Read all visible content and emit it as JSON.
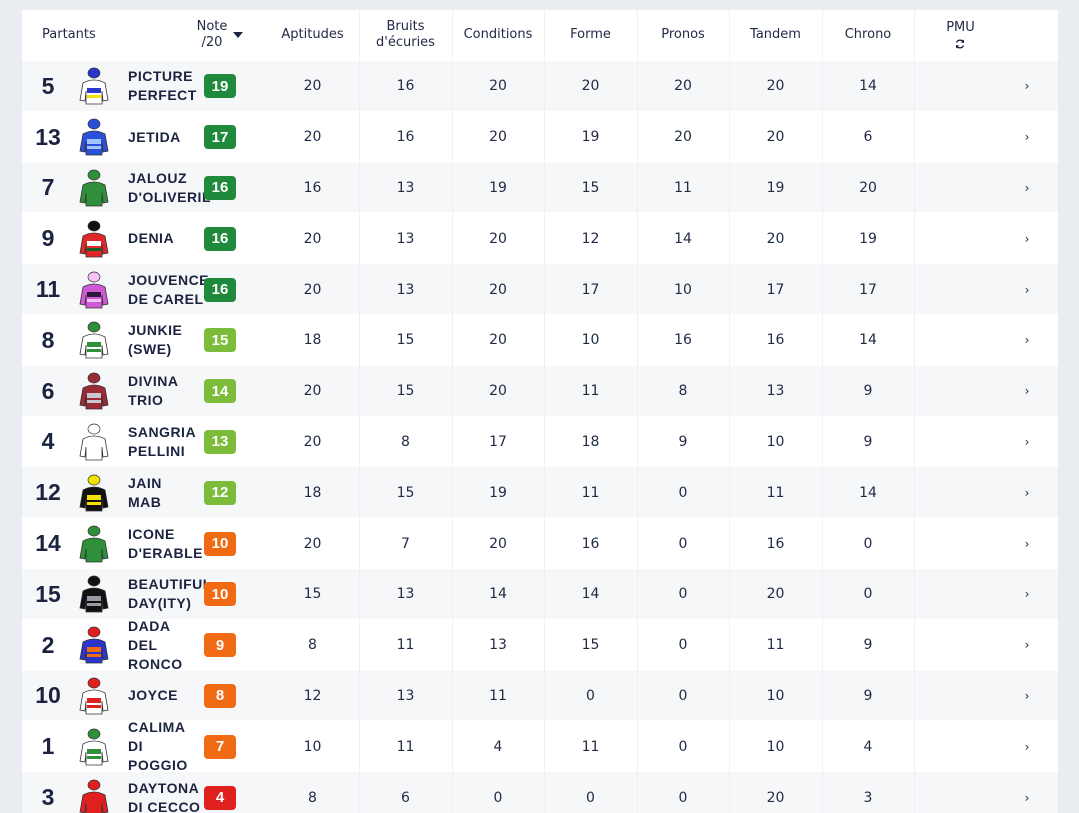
{
  "columns": {
    "partants": "Partants",
    "note": "Note",
    "note_sub": "/20",
    "aptitudes": "Aptitudes",
    "bruits": "Bruits",
    "bruits_sub": "d'écuries",
    "conditions": "Conditions",
    "forme": "Forme",
    "pronos": "Pronos",
    "tandem": "Tandem",
    "chrono": "Chrono",
    "pmu": "PMU"
  },
  "colors": {
    "note_band": "#e3e8ef",
    "badge_dark_green": "#1f8a3b",
    "badge_light_green": "#7cbc3a",
    "badge_orange": "#f06a14",
    "badge_red": "#e0201e"
  },
  "rows": [
    {
      "num": "5",
      "name": "PICTURE\nPERFECT",
      "note": "19",
      "badge": "#1f8a3b",
      "aptitudes": "20",
      "bruits": "16",
      "conditions": "20",
      "forme": "20",
      "pronos": "20",
      "tandem": "20",
      "chrono": "14",
      "pmu": "›",
      "silk": {
        "body": "#ffffff",
        "band": "#2a36c9",
        "accent": "#f2e300",
        "cap": "#2a36c9"
      }
    },
    {
      "num": "13",
      "name": "JETIDA",
      "note": "17",
      "badge": "#1f8a3b",
      "aptitudes": "20",
      "bruits": "16",
      "conditions": "20",
      "forme": "19",
      "pronos": "20",
      "tandem": "20",
      "chrono": "6",
      "pmu": "›",
      "silk": {
        "body": "#2a4fd9",
        "band": "#9ec4ff",
        "accent": "#9ec4ff",
        "cap": "#2a4fd9"
      }
    },
    {
      "num": "7",
      "name": "JALOUZ\nD'OLIVERIL",
      "note": "16",
      "badge": "#1f8a3b",
      "aptitudes": "16",
      "bruits": "13",
      "conditions": "19",
      "forme": "15",
      "pronos": "11",
      "tandem": "19",
      "chrono": "20",
      "pmu": "›",
      "silk": {
        "body": "#2f8f3a",
        "band": "#2f8f3a",
        "accent": "#2f8f3a",
        "cap": "#2f8f3a"
      }
    },
    {
      "num": "9",
      "name": "DENIA",
      "note": "16",
      "badge": "#1f8a3b",
      "aptitudes": "20",
      "bruits": "13",
      "conditions": "20",
      "forme": "12",
      "pronos": "14",
      "tandem": "20",
      "chrono": "19",
      "pmu": "›",
      "silk": {
        "body": "#e0282a",
        "band": "#ffffff",
        "accent": "#135e2b",
        "cap": "#111111"
      }
    },
    {
      "num": "11",
      "name": "JOUVENCE\nDE CAREL",
      "note": "16",
      "badge": "#1f8a3b",
      "aptitudes": "20",
      "bruits": "13",
      "conditions": "20",
      "forme": "17",
      "pronos": "10",
      "tandem": "17",
      "chrono": "17",
      "pmu": "›",
      "silk": {
        "body": "#d05ad6",
        "band": "#2a1a3a",
        "accent": "#f6c2f8",
        "cap": "#f6c2f8"
      }
    },
    {
      "num": "8",
      "name": "JUNKIE\n(SWE)",
      "note": "15",
      "badge": "#7cbc3a",
      "aptitudes": "18",
      "bruits": "15",
      "conditions": "20",
      "forme": "10",
      "pronos": "16",
      "tandem": "16",
      "chrono": "14",
      "pmu": "›",
      "silk": {
        "body": "#ffffff",
        "band": "#2f8f3a",
        "accent": "#2f8f3a",
        "cap": "#2f8f3a"
      }
    },
    {
      "num": "6",
      "name": "DIVINA\nTRIO",
      "note": "14",
      "badge": "#7cbc3a",
      "aptitudes": "20",
      "bruits": "15",
      "conditions": "20",
      "forme": "11",
      "pronos": "8",
      "tandem": "13",
      "chrono": "9",
      "pmu": "›",
      "silk": {
        "body": "#9a2a36",
        "band": "#c8c8d0",
        "accent": "#c8c8d0",
        "cap": "#9a2a36"
      }
    },
    {
      "num": "4",
      "name": "SANGRIA\nPELLINI",
      "note": "13",
      "badge": "#7cbc3a",
      "aptitudes": "20",
      "bruits": "8",
      "conditions": "17",
      "forme": "18",
      "pronos": "9",
      "tandem": "10",
      "chrono": "9",
      "pmu": "›",
      "silk": {
        "body": "#ffffff",
        "band": "#ffffff",
        "accent": "#ffffff",
        "cap": "#ffffff"
      }
    },
    {
      "num": "12",
      "name": "JAIN\nMAB",
      "note": "12",
      "badge": "#7cbc3a",
      "aptitudes": "18",
      "bruits": "15",
      "conditions": "19",
      "forme": "11",
      "pronos": "0",
      "tandem": "11",
      "chrono": "14",
      "pmu": "›",
      "silk": {
        "body": "#111111",
        "band": "#f2e300",
        "accent": "#f2e300",
        "cap": "#f2e300"
      }
    },
    {
      "num": "14",
      "name": "ICONE\nD'ERABLE",
      "note": "10",
      "badge": "#f06a14",
      "aptitudes": "20",
      "bruits": "7",
      "conditions": "20",
      "forme": "16",
      "pronos": "0",
      "tandem": "16",
      "chrono": "0",
      "pmu": "›",
      "silk": {
        "body": "#2f8f3a",
        "band": "#2f8f3a",
        "accent": "#2f8f3a",
        "cap": "#2f8f3a"
      }
    },
    {
      "num": "15",
      "name": "BEAUTIFUL\nDAY(ITY)",
      "note": "10",
      "badge": "#f06a14",
      "aptitudes": "15",
      "bruits": "13",
      "conditions": "14",
      "forme": "14",
      "pronos": "0",
      "tandem": "20",
      "chrono": "0",
      "pmu": "›",
      "silk": {
        "body": "#111111",
        "band": "#9a9aa4",
        "accent": "#9a9aa4",
        "cap": "#111111"
      }
    },
    {
      "num": "2",
      "name": "DADA\nDEL\nRONCO",
      "note": "9",
      "badge": "#f06a14",
      "aptitudes": "8",
      "bruits": "11",
      "conditions": "13",
      "forme": "15",
      "pronos": "0",
      "tandem": "11",
      "chrono": "9",
      "pmu": "›",
      "silk": {
        "body": "#2a36c9",
        "band": "#f06a14",
        "accent": "#f06a14",
        "cap": "#e0201e"
      }
    },
    {
      "num": "10",
      "name": "JOYCE",
      "note": "8",
      "badge": "#f06a14",
      "aptitudes": "12",
      "bruits": "13",
      "conditions": "11",
      "forme": "0",
      "pronos": "0",
      "tandem": "10",
      "chrono": "9",
      "pmu": "›",
      "silk": {
        "body": "#ffffff",
        "band": "#e0201e",
        "accent": "#e0201e",
        "cap": "#e0201e"
      }
    },
    {
      "num": "1",
      "name": "CALIMA\nDI\nPOGGIO",
      "note": "7",
      "badge": "#f06a14",
      "aptitudes": "10",
      "bruits": "11",
      "conditions": "4",
      "forme": "11",
      "pronos": "0",
      "tandem": "10",
      "chrono": "4",
      "pmu": "›",
      "silk": {
        "body": "#ffffff",
        "band": "#2f8f3a",
        "accent": "#2f8f3a",
        "cap": "#2f8f3a"
      }
    },
    {
      "num": "3",
      "name": "DAYTONA\nDI CECCO",
      "note": "4",
      "badge": "#e0201e",
      "aptitudes": "8",
      "bruits": "6",
      "conditions": "0",
      "forme": "0",
      "pronos": "0",
      "tandem": "20",
      "chrono": "3",
      "pmu": "›",
      "silk": {
        "body": "#e0201e",
        "band": "#e0201e",
        "accent": "#e0201e",
        "cap": "#e0201e"
      }
    }
  ]
}
